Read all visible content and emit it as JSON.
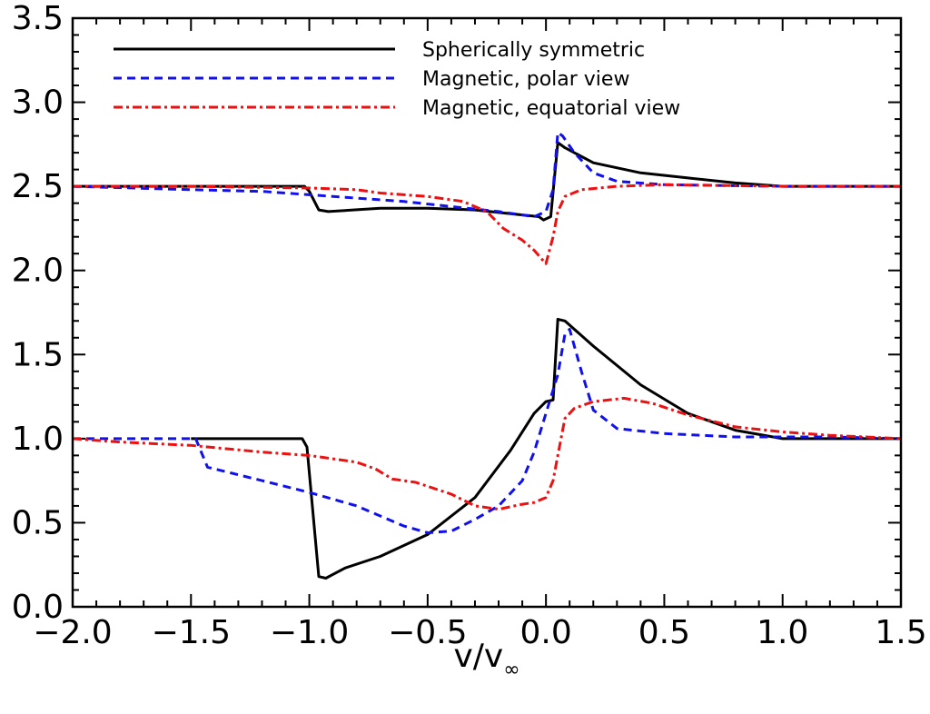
{
  "chart_data": {
    "type": "line",
    "title": "",
    "xlabel": "v/v",
    "xlabel_subscript": "∞",
    "ylabel": "",
    "xlim": [
      -2.0,
      1.5
    ],
    "ylim": [
      0.0,
      3.5
    ],
    "x_ticks": [
      {
        "value": -2.0,
        "label": "−2.0"
      },
      {
        "value": -1.5,
        "label": "−1.5"
      },
      {
        "value": -1.0,
        "label": "−1.0"
      },
      {
        "value": -0.5,
        "label": "−0.5"
      },
      {
        "value": 0.0,
        "label": "0.0"
      },
      {
        "value": 0.5,
        "label": "0.5"
      },
      {
        "value": 1.0,
        "label": "1.0"
      },
      {
        "value": 1.5,
        "label": "1.5"
      }
    ],
    "y_ticks": [
      {
        "value": 0.0,
        "label": "0.0"
      },
      {
        "value": 0.5,
        "label": "0.5"
      },
      {
        "value": 1.0,
        "label": "1.0"
      },
      {
        "value": 1.5,
        "label": "1.5"
      },
      {
        "value": 2.0,
        "label": "2.0"
      },
      {
        "value": 2.5,
        "label": "2.5"
      },
      {
        "value": 3.0,
        "label": "3.0"
      },
      {
        "value": 3.5,
        "label": "3.5"
      }
    ],
    "x_minor_step": 0.1,
    "y_minor_step": 0.1,
    "grid": false,
    "legend_position": "top",
    "series": [
      {
        "name": "Spherically symmetric",
        "color": "#000000",
        "dash": "solid",
        "segments": [
          [
            [
              -1.5,
              1.0
            ],
            [
              -1.03,
              1.0
            ],
            [
              -1.01,
              0.95
            ],
            [
              -0.96,
              0.18
            ],
            [
              -0.93,
              0.17
            ],
            [
              -0.85,
              0.23
            ],
            [
              -0.7,
              0.3
            ],
            [
              -0.5,
              0.43
            ],
            [
              -0.3,
              0.65
            ],
            [
              -0.15,
              0.93
            ],
            [
              -0.05,
              1.15
            ],
            [
              0.0,
              1.22
            ],
            [
              0.03,
              1.23
            ],
            [
              0.05,
              1.71
            ],
            [
              0.08,
              1.7
            ],
            [
              0.2,
              1.55
            ],
            [
              0.4,
              1.32
            ],
            [
              0.6,
              1.15
            ],
            [
              0.8,
              1.05
            ],
            [
              1.0,
              1.0
            ],
            [
              1.5,
              1.0
            ]
          ],
          [
            [
              -2.0,
              2.5
            ],
            [
              -1.02,
              2.5
            ],
            [
              -1.0,
              2.47
            ],
            [
              -0.96,
              2.36
            ],
            [
              -0.92,
              2.35
            ],
            [
              -0.7,
              2.37
            ],
            [
              -0.5,
              2.37
            ],
            [
              -0.3,
              2.36
            ],
            [
              -0.1,
              2.33
            ],
            [
              -0.03,
              2.32
            ],
            [
              -0.01,
              2.3
            ],
            [
              0.02,
              2.32
            ],
            [
              0.05,
              2.76
            ],
            [
              0.08,
              2.73
            ],
            [
              0.2,
              2.64
            ],
            [
              0.4,
              2.58
            ],
            [
              0.6,
              2.55
            ],
            [
              0.8,
              2.52
            ],
            [
              1.0,
              2.5
            ],
            [
              1.5,
              2.5
            ]
          ]
        ]
      },
      {
        "name": "Magnetic, polar view",
        "color": "#1010ee",
        "dash": "dashed",
        "segments": [
          [
            [
              -2.0,
              1.0
            ],
            [
              -1.48,
              1.0
            ],
            [
              -1.43,
              0.83
            ],
            [
              -1.2,
              0.75
            ],
            [
              -1.0,
              0.68
            ],
            [
              -0.8,
              0.6
            ],
            [
              -0.6,
              0.48
            ],
            [
              -0.5,
              0.44
            ],
            [
              -0.4,
              0.45
            ],
            [
              -0.3,
              0.52
            ],
            [
              -0.2,
              0.6
            ],
            [
              -0.1,
              0.75
            ],
            [
              -0.05,
              0.92
            ],
            [
              0.0,
              1.15
            ],
            [
              0.05,
              1.38
            ],
            [
              0.08,
              1.62
            ],
            [
              0.1,
              1.65
            ],
            [
              0.15,
              1.4
            ],
            [
              0.2,
              1.17
            ],
            [
              0.3,
              1.06
            ],
            [
              0.5,
              1.03
            ],
            [
              0.8,
              1.01
            ],
            [
              1.2,
              1.01
            ],
            [
              1.5,
              1.0
            ]
          ],
          [
            [
              -2.0,
              2.5
            ],
            [
              -1.5,
              2.48
            ],
            [
              -1.2,
              2.47
            ],
            [
              -1.0,
              2.45
            ],
            [
              -0.8,
              2.43
            ],
            [
              -0.6,
              2.41
            ],
            [
              -0.4,
              2.38
            ],
            [
              -0.2,
              2.35
            ],
            [
              -0.05,
              2.32
            ],
            [
              0.0,
              2.35
            ],
            [
              0.03,
              2.48
            ],
            [
              0.05,
              2.82
            ],
            [
              0.07,
              2.8
            ],
            [
              0.12,
              2.7
            ],
            [
              0.2,
              2.58
            ],
            [
              0.3,
              2.53
            ],
            [
              0.5,
              2.51
            ],
            [
              1.0,
              2.5
            ],
            [
              1.5,
              2.5
            ]
          ]
        ]
      },
      {
        "name": "Magnetic, equatorial view",
        "color": "#ee1010",
        "dash": "dashdot",
        "segments": [
          [
            [
              -2.0,
              1.0
            ],
            [
              -1.8,
              0.98
            ],
            [
              -1.5,
              0.96
            ],
            [
              -1.2,
              0.92
            ],
            [
              -1.0,
              0.9
            ],
            [
              -0.8,
              0.86
            ],
            [
              -0.72,
              0.82
            ],
            [
              -0.65,
              0.76
            ],
            [
              -0.55,
              0.74
            ],
            [
              -0.4,
              0.67
            ],
            [
              -0.3,
              0.6
            ],
            [
              -0.2,
              0.58
            ],
            [
              -0.1,
              0.61
            ],
            [
              -0.05,
              0.62
            ],
            [
              0.0,
              0.65
            ],
            [
              0.03,
              0.75
            ],
            [
              0.05,
              0.9
            ],
            [
              0.08,
              1.12
            ],
            [
              0.12,
              1.18
            ],
            [
              0.2,
              1.22
            ],
            [
              0.33,
              1.24
            ],
            [
              0.45,
              1.21
            ],
            [
              0.6,
              1.14
            ],
            [
              0.8,
              1.07
            ],
            [
              1.0,
              1.04
            ],
            [
              1.2,
              1.02
            ],
            [
              1.5,
              1.0
            ]
          ],
          [
            [
              -2.0,
              2.5
            ],
            [
              -1.5,
              2.5
            ],
            [
              -1.0,
              2.49
            ],
            [
              -0.8,
              2.48
            ],
            [
              -0.7,
              2.46
            ],
            [
              -0.5,
              2.44
            ],
            [
              -0.35,
              2.41
            ],
            [
              -0.25,
              2.35
            ],
            [
              -0.18,
              2.25
            ],
            [
              -0.1,
              2.18
            ],
            [
              -0.05,
              2.12
            ],
            [
              0.0,
              2.04
            ],
            [
              0.03,
              2.2
            ],
            [
              0.05,
              2.35
            ],
            [
              0.08,
              2.44
            ],
            [
              0.15,
              2.48
            ],
            [
              0.3,
              2.5
            ],
            [
              0.5,
              2.51
            ],
            [
              1.0,
              2.5
            ],
            [
              1.5,
              2.5
            ]
          ]
        ]
      }
    ]
  }
}
